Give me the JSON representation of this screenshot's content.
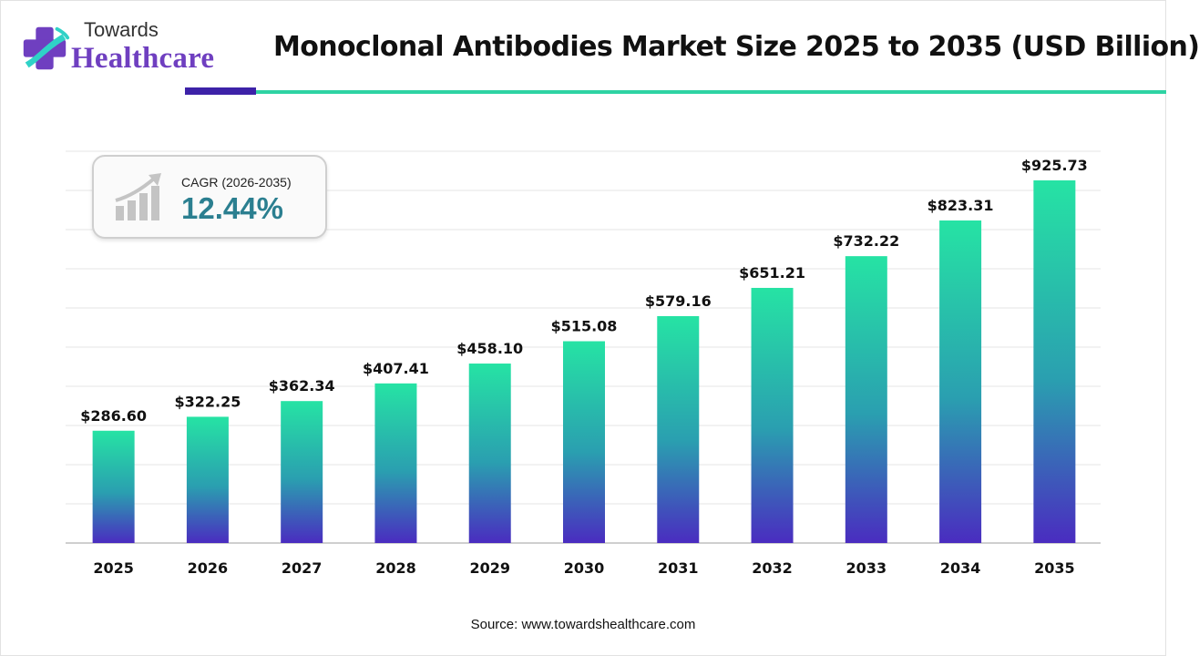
{
  "brand": {
    "name_top": "Towards",
    "name_main": "Healthcare"
  },
  "chart_data": {
    "type": "bar",
    "title": "Monoclonal Antibodies Market Size 2025 to 2035 (USD Billion)",
    "categories": [
      "2025",
      "2026",
      "2027",
      "2028",
      "2029",
      "2030",
      "2031",
      "2032",
      "2033",
      "2034",
      "2035"
    ],
    "values": [
      286.6,
      322.25,
      362.34,
      407.41,
      458.1,
      515.08,
      579.16,
      651.21,
      732.22,
      823.31,
      925.73
    ],
    "value_labels": [
      "$286.60",
      "$322.25",
      "$362.34",
      "$407.41",
      "$458.10",
      "$515.08",
      "$579.16",
      "$651.21",
      "$732.22",
      "$823.31",
      "$925.73"
    ],
    "xlabel": "",
    "ylabel": "",
    "ylim": [
      0,
      1000
    ],
    "grid": true,
    "legend": "none",
    "colors": {
      "bar_top": "#26e3a4",
      "bar_mid": "#2a9fb0",
      "bar_bottom": "#4a2cc0",
      "grid": "#e6e6e6",
      "axis": "#bfbfbf"
    }
  },
  "cagr": {
    "label": "CAGR (2026-2035)",
    "value": "12.44%"
  },
  "source": "Source: www.towardshealthcare.com",
  "colors": {
    "accent_purple": "#3d22a8",
    "accent_teal": "#2ed3a3",
    "cagr_text": "#2b7f90"
  }
}
